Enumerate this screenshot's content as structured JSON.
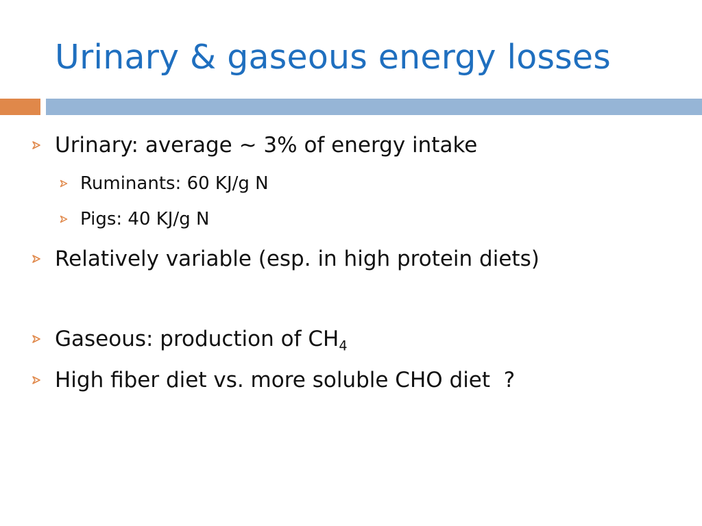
{
  "slide": {
    "title": "Urinary & gaseous energy losses",
    "colors": {
      "title": "#1f6fbf",
      "accent_orange": "#e0884a",
      "accent_blue": "#96b5d6",
      "bullet_marker": "#e0884a"
    },
    "bullets": {
      "urinary": "Urinary: average ~ 3% of energy intake",
      "ruminants": "Ruminants: 60 KJ/g N",
      "pigs": "Pigs: 40 KJ/g N",
      "variable": "Relatively variable (esp. in high protein diets)",
      "gaseous_text": "Gaseous: production of CH",
      "gaseous_sub": "4",
      "fiber": "High fiber diet vs. more soluble CHO diet  ?"
    },
    "marker_icon": "arrowhead-bullet-icon"
  }
}
